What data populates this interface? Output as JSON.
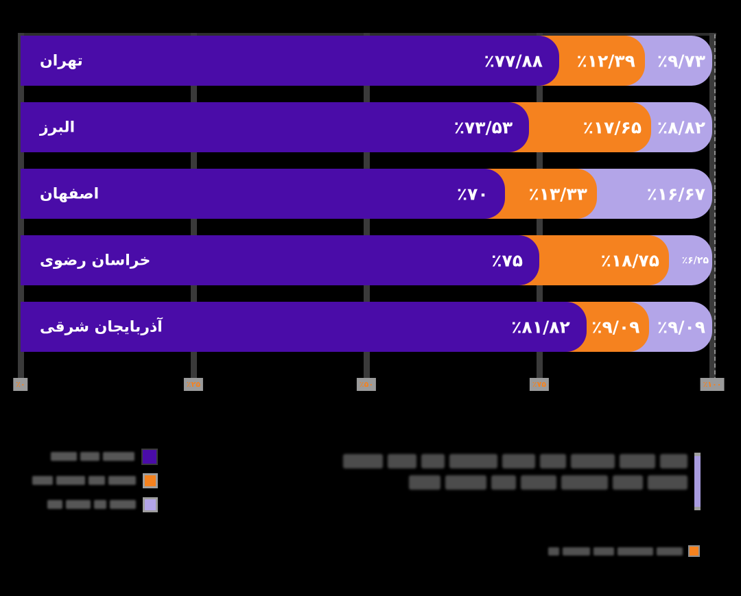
{
  "chart_data": {
    "type": "bar",
    "orientation": "horizontal",
    "stacked": true,
    "title": "",
    "title_legible": false,
    "categories": [
      "تهران",
      "البرز",
      "اصفهان",
      "خراسان رضوی",
      "آذربایجان شرقی"
    ],
    "series": [
      {
        "name": "",
        "label_legible": false,
        "color": "#4A0CA8",
        "values": [
          77.88,
          73.53,
          70,
          75,
          81.82
        ],
        "value_labels": [
          "٪۷۷/۸۸",
          "٪۷۳/۵۳",
          "٪۷۰",
          "٪۷۵",
          "٪۸۱/۸۲"
        ]
      },
      {
        "name": "",
        "label_legible": false,
        "color": "#F5821F",
        "values": [
          12.39,
          17.65,
          13.33,
          18.75,
          9.09
        ],
        "value_labels": [
          "٪۱۲/۳۹",
          "٪۱۷/۶۵",
          "٪۱۳/۳۳",
          "٪۱۸/۷۵",
          "٪۹/۰۹"
        ]
      },
      {
        "name": "",
        "label_legible": false,
        "color": "#B3A5E8",
        "values": [
          9.73,
          8.82,
          16.67,
          6.25,
          9.09
        ],
        "value_labels": [
          "٪۹/۷۳",
          "٪۸/۸۲",
          "٪۱۶/۶۷",
          "٪۶/۲۵",
          "٪۹/۰۹"
        ]
      }
    ],
    "x_ticks": [
      "٪۰",
      "٪۲۵",
      "٪۵۰",
      "٪۷۵",
      "٪۱۰۰"
    ],
    "xlim": [
      0,
      100
    ],
    "grid": "vertical",
    "legend_position": "bottom-left",
    "background": "#000000",
    "value_text_color": "#FFFFFF",
    "tick_text_color": "#F5821F",
    "gridline_color": "#3A3A3A",
    "tick_chip_color": "#9B9B9B"
  },
  "legend": {
    "labels_legible": false,
    "items": [
      {
        "color": "#4A0CA8"
      },
      {
        "color": "#F5821F"
      },
      {
        "color": "#B3A5E8"
      }
    ]
  },
  "title_block": {
    "lines": 2,
    "legible": false,
    "accent_bar_color": "#A89BDF"
  },
  "source_note": {
    "legible": false,
    "marker_color": "#F5821F"
  }
}
